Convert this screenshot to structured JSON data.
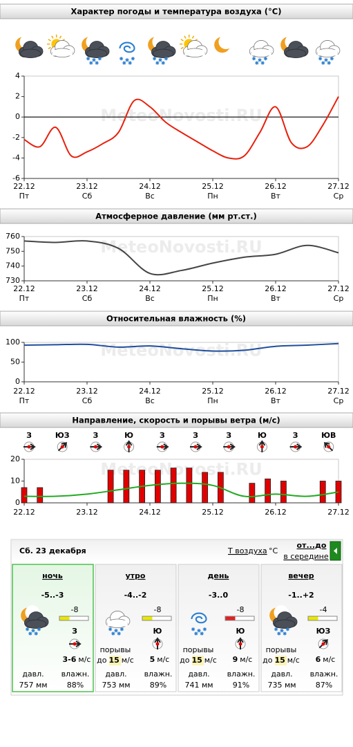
{
  "watermark": "MeteoNovosti.RU",
  "chart_data": [
    {
      "type": "line",
      "title": "Характер погоды и температура воздуха (°C)",
      "xlim": [
        0,
        120
      ],
      "xticks": [
        {
          "value": 0,
          "label": "22.12"
        },
        {
          "value": 24,
          "label": "23.12"
        },
        {
          "value": 48,
          "label": "24.12"
        },
        {
          "value": 72,
          "label": "25.12"
        },
        {
          "value": 96,
          "label": "26.12"
        },
        {
          "value": 120,
          "label": "27.12"
        }
      ],
      "xtick_days": [
        "Пт",
        "Сб",
        "Вс",
        "Пн",
        "Вт",
        "Ср"
      ],
      "ylim": [
        -6,
        4
      ],
      "yticks": [
        -6,
        -4,
        -2,
        0,
        2,
        4
      ],
      "zero_line": true,
      "series": [
        {
          "color": "#e8200c",
          "x": [
            0,
            6,
            12,
            18,
            24,
            30,
            36,
            42,
            48,
            54,
            60,
            66,
            72,
            78,
            84,
            90,
            96,
            102,
            108,
            114,
            120
          ],
          "values": [
            -2.2,
            -2.9,
            -1.0,
            -3.8,
            -3.4,
            -2.6,
            -1.5,
            1.6,
            1.0,
            -0.5,
            -1.5,
            -2.4,
            -3.3,
            -4.0,
            -3.8,
            -1.5,
            1.0,
            -2.5,
            -2.9,
            -0.8,
            2.0
          ]
        }
      ]
    },
    {
      "type": "line",
      "title": "Атмосферное давление (мм рт.ст.)",
      "xlim": [
        0,
        120
      ],
      "xticks": [
        {
          "value": 0,
          "label": "22.12"
        },
        {
          "value": 24,
          "label": "23.12"
        },
        {
          "value": 48,
          "label": "24.12"
        },
        {
          "value": 72,
          "label": "25.12"
        },
        {
          "value": 96,
          "label": "26.12"
        },
        {
          "value": 120,
          "label": "27.12"
        }
      ],
      "xtick_days": [
        "Пт",
        "Сб",
        "Вс",
        "Пн",
        "Вт",
        "Ср"
      ],
      "ylim": [
        730,
        760
      ],
      "yticks": [
        730,
        740,
        750,
        760
      ],
      "series": [
        {
          "color": "#444444",
          "x": [
            0,
            12,
            24,
            36,
            48,
            60,
            72,
            84,
            96,
            108,
            120
          ],
          "values": [
            757,
            756,
            757,
            752,
            735,
            737,
            742,
            746,
            748,
            754,
            749
          ]
        }
      ]
    },
    {
      "type": "line",
      "title": "Относительная влажность (%)",
      "xlim": [
        0,
        120
      ],
      "xticks": [
        {
          "value": 0,
          "label": "22.12"
        },
        {
          "value": 24,
          "label": "23.12"
        },
        {
          "value": 48,
          "label": "24.12"
        },
        {
          "value": 72,
          "label": "25.12"
        },
        {
          "value": 96,
          "label": "26.12"
        },
        {
          "value": 120,
          "label": "27.12"
        }
      ],
      "xtick_days": [
        "Пт",
        "Сб",
        "Вс",
        "Пн",
        "Вт",
        "Ср"
      ],
      "ylim": [
        0,
        100
      ],
      "yticks": [
        0,
        50,
        100
      ],
      "series": [
        {
          "color": "#1f4e9c",
          "x": [
            0,
            12,
            24,
            36,
            48,
            60,
            72,
            84,
            96,
            108,
            120
          ],
          "values": [
            93,
            94,
            95,
            88,
            91,
            84,
            78,
            80,
            90,
            93,
            97
          ]
        }
      ]
    },
    {
      "type": "combo",
      "title": "Направление, скорость и порывы ветра (м/с)",
      "wind_directions": [
        "З",
        "ЮЗ",
        "З",
        "Ю",
        "З",
        "З",
        "З",
        "Ю",
        "З",
        "ЮВ"
      ],
      "xlim": [
        0,
        120
      ],
      "xticks": [
        {
          "value": 0,
          "label": "22.12"
        },
        {
          "value": 24,
          "label": "23.12"
        },
        {
          "value": 48,
          "label": "24.12"
        },
        {
          "value": 72,
          "label": "25.12"
        },
        {
          "value": 96,
          "label": "26.12"
        },
        {
          "value": 120,
          "label": "27.12"
        }
      ],
      "ylim": [
        0,
        20
      ],
      "yticks": [
        0,
        10,
        20
      ],
      "series": [
        {
          "type": "bar",
          "color": "#e00000",
          "x": [
            0,
            6,
            33,
            39,
            45,
            51,
            57,
            63,
            69,
            75,
            87,
            93,
            99,
            114,
            120
          ],
          "values": [
            7,
            7,
            15,
            15,
            15,
            15,
            16,
            16,
            14,
            14,
            9,
            11,
            10,
            10,
            10
          ]
        },
        {
          "type": "line",
          "color": "#22aa22",
          "x": [
            0,
            12,
            24,
            36,
            48,
            60,
            72,
            84,
            96,
            108,
            120
          ],
          "values": [
            3,
            3,
            4,
            6,
            8,
            9,
            8,
            3,
            4,
            3,
            5
          ]
        }
      ]
    }
  ],
  "forecast": {
    "date": "Сб. 23 декабря",
    "temp_link": "Т воздуха",
    "temp_unit": "°C",
    "mode_active": "от...до",
    "mode_other": "в середине",
    "gusts_label": "порывы",
    "gusts_prefix": "до",
    "speed_unit": "м/с",
    "pressure_label": "давл.",
    "humidity_label": "влажн.",
    "periods": [
      {
        "name": "ночь",
        "range": "-5..-3",
        "temp": "-8",
        "temp_color": "#e8e800",
        "wind_dir": "З",
        "wind_speed": "3-6",
        "pressure": "757 мм",
        "humidity": "88%"
      },
      {
        "name": "утро",
        "range": "-4..-2",
        "temp": "-8",
        "temp_color": "#e8e800",
        "wind_dir": "Ю",
        "wind_speed": "5",
        "gust": "15",
        "pressure": "753 мм",
        "humidity": "89%"
      },
      {
        "name": "день",
        "range": "-3..0",
        "temp": "-8",
        "temp_color": "#e02020",
        "wind_dir": "Ю",
        "wind_speed": "9",
        "gust": "15",
        "pressure": "741 мм",
        "humidity": "91%"
      },
      {
        "name": "вечер",
        "range": "-1..+2",
        "temp": "-4",
        "temp_color": "#e8e800",
        "wind_dir": "ЮЗ",
        "wind_speed": "6",
        "gust": "15",
        "pressure": "735 мм",
        "humidity": "87%"
      }
    ]
  }
}
